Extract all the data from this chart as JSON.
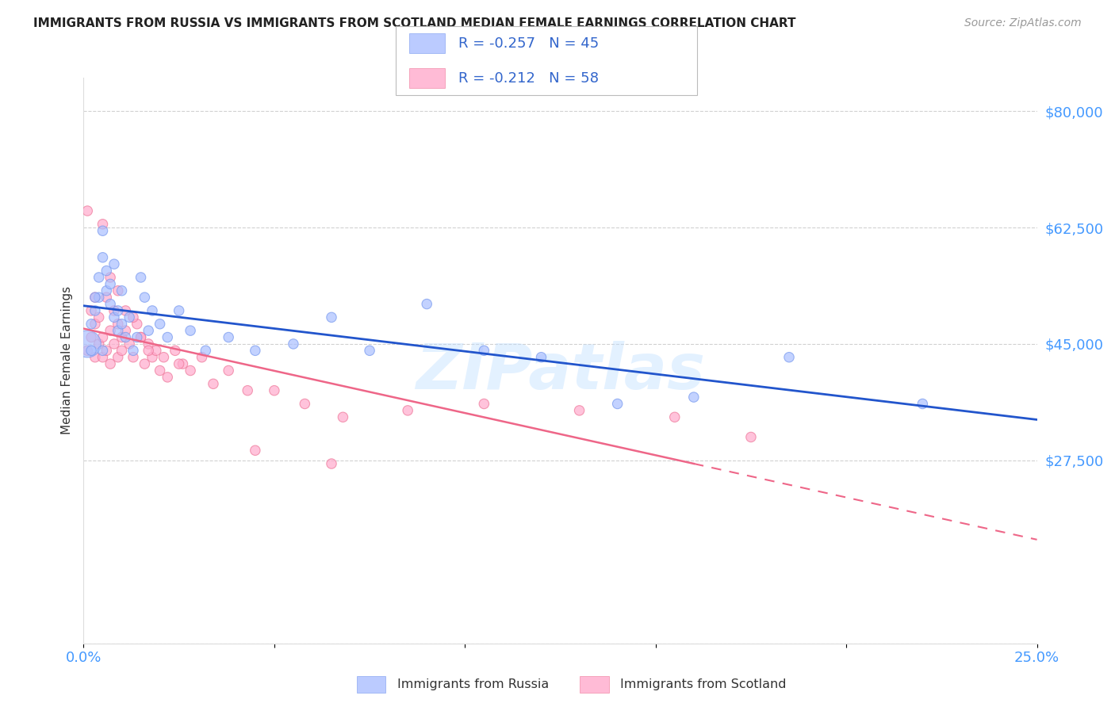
{
  "title": "IMMIGRANTS FROM RUSSIA VS IMMIGRANTS FROM SCOTLAND MEDIAN FEMALE EARNINGS CORRELATION CHART",
  "source": "Source: ZipAtlas.com",
  "ylabel": "Median Female Earnings",
  "xlim": [
    0.0,
    0.25
  ],
  "ylim": [
    0,
    85000
  ],
  "yticks": [
    0,
    27500,
    45000,
    62500,
    80000
  ],
  "ytick_labels": [
    "",
    "$27,500",
    "$45,000",
    "$62,500",
    "$80,000"
  ],
  "xticks": [
    0.0,
    0.05,
    0.1,
    0.15,
    0.2,
    0.25
  ],
  "xtick_labels": [
    "0.0%",
    "",
    "",
    "",
    "",
    "25.0%"
  ],
  "russia_color": "#aabfff",
  "russia_edge_color": "#7799ee",
  "scotland_color": "#ffaacc",
  "scotland_edge_color": "#ee7799",
  "russia_line_color": "#2255cc",
  "scotland_line_color": "#ee6688",
  "russia_R": -0.257,
  "russia_N": 45,
  "scotland_R": -0.212,
  "scotland_N": 58,
  "russia_label": "Immigrants from Russia",
  "scotland_label": "Immigrants from Scotland",
  "watermark": "ZIPatlas",
  "background_color": "#ffffff",
  "grid_color": "#cccccc",
  "title_color": "#222222",
  "tick_label_color": "#4499ff",
  "legend_text_color": "#3366cc",
  "russia_x": [
    0.001,
    0.002,
    0.003,
    0.004,
    0.004,
    0.005,
    0.005,
    0.006,
    0.006,
    0.007,
    0.007,
    0.008,
    0.008,
    0.009,
    0.009,
    0.01,
    0.01,
    0.011,
    0.012,
    0.013,
    0.014,
    0.015,
    0.016,
    0.017,
    0.018,
    0.02,
    0.022,
    0.025,
    0.028,
    0.032,
    0.038,
    0.045,
    0.055,
    0.065,
    0.075,
    0.09,
    0.105,
    0.12,
    0.14,
    0.16,
    0.185,
    0.22,
    0.003,
    0.005,
    0.002
  ],
  "russia_y": [
    45000,
    48000,
    50000,
    55000,
    52000,
    62000,
    58000,
    56000,
    53000,
    54000,
    51000,
    57000,
    49000,
    47000,
    50000,
    53000,
    48000,
    46000,
    49000,
    44000,
    46000,
    55000,
    52000,
    47000,
    50000,
    48000,
    46000,
    50000,
    47000,
    44000,
    46000,
    44000,
    45000,
    49000,
    44000,
    51000,
    44000,
    43000,
    36000,
    37000,
    43000,
    36000,
    52000,
    44000,
    44000
  ],
  "russia_sizes": [
    600,
    80,
    80,
    80,
    80,
    80,
    80,
    80,
    80,
    80,
    80,
    80,
    80,
    80,
    80,
    80,
    80,
    80,
    80,
    80,
    80,
    80,
    80,
    80,
    80,
    80,
    80,
    80,
    80,
    80,
    80,
    80,
    80,
    80,
    80,
    80,
    80,
    80,
    80,
    80,
    80,
    80,
    80,
    80,
    80
  ],
  "scotland_x": [
    0.001,
    0.002,
    0.002,
    0.003,
    0.003,
    0.004,
    0.004,
    0.005,
    0.005,
    0.006,
    0.006,
    0.007,
    0.007,
    0.008,
    0.008,
    0.009,
    0.009,
    0.01,
    0.01,
    0.011,
    0.012,
    0.013,
    0.014,
    0.015,
    0.016,
    0.017,
    0.018,
    0.019,
    0.02,
    0.021,
    0.022,
    0.024,
    0.026,
    0.028,
    0.031,
    0.034,
    0.038,
    0.043,
    0.05,
    0.058,
    0.068,
    0.085,
    0.105,
    0.13,
    0.155,
    0.175,
    0.001,
    0.003,
    0.005,
    0.007,
    0.009,
    0.011,
    0.013,
    0.015,
    0.017,
    0.025,
    0.045,
    0.065
  ],
  "scotland_y": [
    44000,
    46000,
    50000,
    48000,
    43000,
    45000,
    49000,
    46000,
    43000,
    44000,
    52000,
    47000,
    42000,
    50000,
    45000,
    48000,
    43000,
    46000,
    44000,
    47000,
    45000,
    43000,
    48000,
    46000,
    42000,
    45000,
    43000,
    44000,
    41000,
    43000,
    40000,
    44000,
    42000,
    41000,
    43000,
    39000,
    41000,
    38000,
    38000,
    36000,
    34000,
    35000,
    36000,
    35000,
    34000,
    31000,
    65000,
    52000,
    63000,
    55000,
    53000,
    50000,
    49000,
    46000,
    44000,
    42000,
    29000,
    27000
  ],
  "scotland_sizes": [
    80,
    80,
    80,
    80,
    80,
    80,
    80,
    80,
    80,
    80,
    80,
    80,
    80,
    80,
    80,
    80,
    80,
    80,
    80,
    80,
    80,
    80,
    80,
    80,
    80,
    80,
    80,
    80,
    80,
    80,
    80,
    80,
    80,
    80,
    80,
    80,
    80,
    80,
    80,
    80,
    80,
    80,
    80,
    80,
    80,
    80,
    80,
    80,
    80,
    80,
    80,
    80,
    80,
    80,
    80,
    80,
    80,
    80
  ]
}
